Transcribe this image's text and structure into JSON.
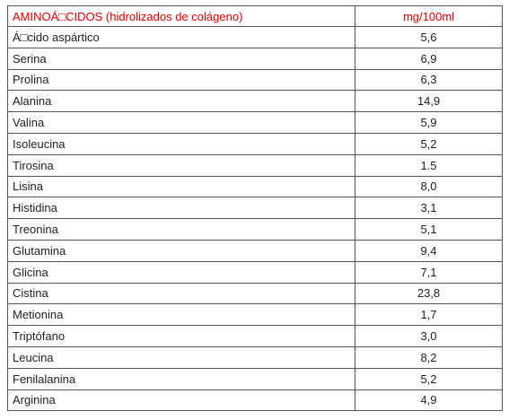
{
  "table": {
    "header": [
      "AMINOÁ□CIDOS (hidrolizados de colágeno)",
      "mg/100ml"
    ],
    "rows": [
      [
        "Á□cido aspártico",
        "5,6"
      ],
      [
        "Serina",
        "6,9"
      ],
      [
        "Prolina",
        "6,3"
      ],
      [
        "Alanina",
        "14,9"
      ],
      [
        "Valina",
        "5,9"
      ],
      [
        "Isoleucina",
        "5,2"
      ],
      [
        "Tirosina",
        "1.5"
      ],
      [
        "Lisina",
        "8,0"
      ],
      [
        "Histidina",
        "3,1"
      ],
      [
        "Treonina",
        "5,1"
      ],
      [
        "Glutamina",
        "9,4"
      ],
      [
        "Glicina",
        "7,1"
      ],
      [
        "Cistina",
        "23,8"
      ],
      [
        "Metionina",
        "1,7"
      ],
      [
        "Triptófano",
        "3,0"
      ],
      [
        "Leucina",
        "8,2"
      ],
      [
        "Fenilalanina",
        "5,2"
      ],
      [
        "Arginina",
        "4,9"
      ]
    ]
  }
}
